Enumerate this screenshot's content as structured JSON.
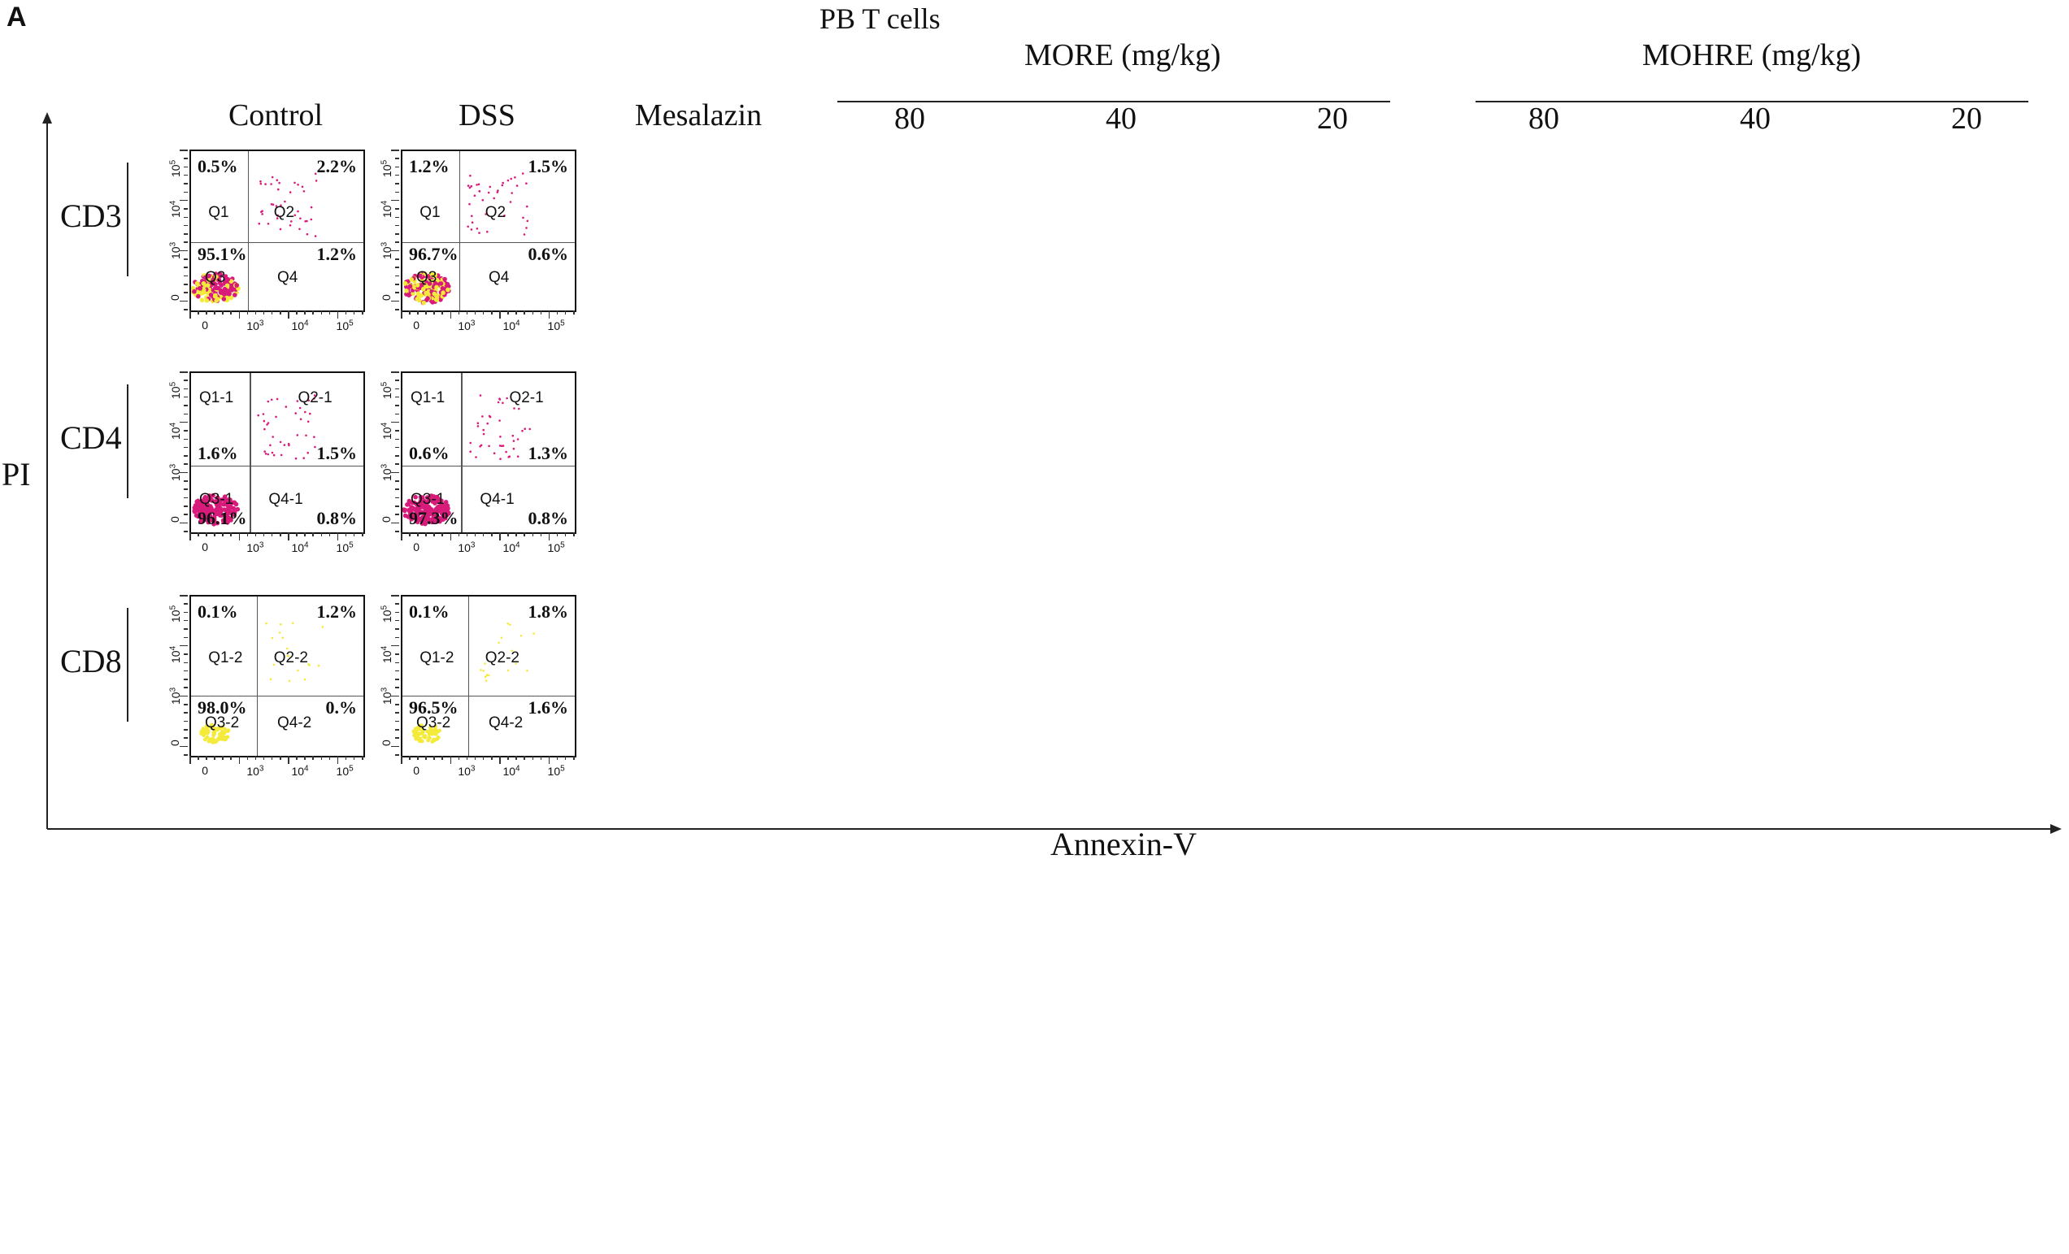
{
  "panel_a": {
    "letter": "A",
    "title": "PB T cells",
    "x_axis_label": "Annexin-V",
    "y_axis_label": "PI",
    "groups": [
      {
        "name": "MORE (mg/kg)"
      },
      {
        "name": "MOHRE (mg/kg)"
      }
    ],
    "columns": [
      "Control",
      "DSS",
      "Mesalazin",
      "80",
      "40",
      "20",
      "80",
      "40",
      "20"
    ],
    "rows": [
      "CD3",
      "CD4",
      "CD8"
    ],
    "tick_labels": {
      "x": [
        "0",
        "10^3",
        "10^4",
        "10^5"
      ],
      "y": [
        "0",
        "10^3",
        "10^4",
        "10^5"
      ]
    },
    "quadrant_labels": [
      [
        "Q1",
        "Q2",
        "Q3",
        "Q4"
      ],
      [
        "Q1-1",
        "Q2-1",
        "Q3-1",
        "Q4-1"
      ],
      [
        "Q1-2",
        "Q2-2",
        "Q3-2",
        "Q4-2"
      ]
    ],
    "cells": [
      [
        {
          "q1": "0.5%",
          "q2": "2.2%",
          "q3": "95.1%",
          "q4": "1.2%"
        },
        {
          "q1": "1.2%",
          "q2": "1.5%",
          "q3": "96.7%",
          "q4": "0.6%"
        }
      ],
      [
        {
          "q1": "1.6%",
          "q2": "1.5%",
          "q3": "96.1%",
          "q4": "0.8%"
        },
        {
          "q1": "0.6%",
          "q2": "1.3%",
          "q3": "97.3%",
          "q4": "0.8%"
        }
      ],
      [
        {
          "q1": "0.1%",
          "q2": "1.2%",
          "q3": "98.0%",
          "q4": "0.%"
        },
        {
          "q1": "0.1%",
          "q2": "1.8%",
          "q3": "96.5%",
          "q4": "1.6%"
        }
      ]
    ]
  },
  "chart_data": []
}
